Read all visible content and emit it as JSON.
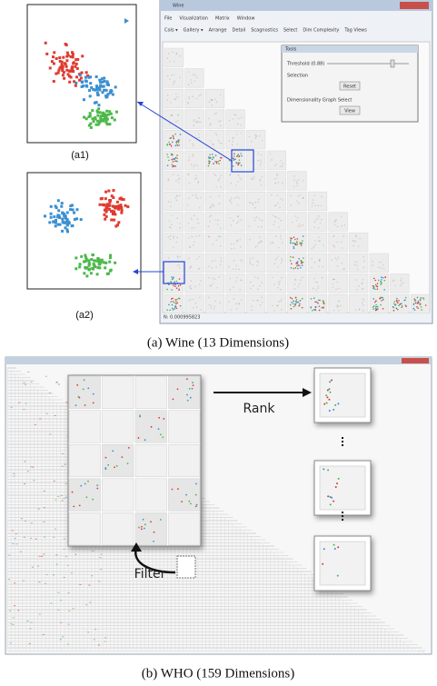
{
  "panel_a": {
    "label_a1": "(a1)",
    "label_a2": "(a2)",
    "caption": "(a) Wine (13 Dimensions)",
    "window": {
      "title": "Wine",
      "menu": [
        "File",
        "Visualization",
        "Matrix",
        "Window"
      ],
      "toolbar": [
        "Cols ▾",
        "Gallery ▾",
        "Arrange",
        "Detail",
        "Scagnostics",
        "Select",
        "Dim Complexity",
        "Tag Views"
      ],
      "dialog": {
        "title": "Tools",
        "threshold": "Threshold (0.88)",
        "selection": "Selection",
        "reset": "Reset",
        "graph": "Dimensionality Graph Select",
        "view": "View"
      },
      "status": "N: 0.000995823"
    }
  },
  "panel_b": {
    "rank": "Rank",
    "filter": "Filter",
    "caption": "(b) WHO (159 Dimensions)"
  }
}
